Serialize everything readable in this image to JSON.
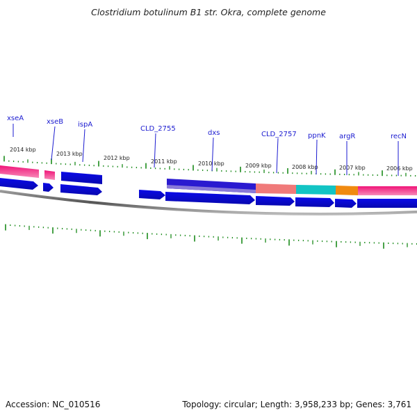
{
  "title": "Clostridium botulinum B1 str. Okra, complete genome",
  "footer": {
    "accession": "Accession: NC_010516",
    "summary": "Topology: circular; Length: 3,958,233 bp; Genes: 3,761"
  },
  "scale_labels": [
    "2014 kbp",
    "2013 kbp",
    "2012 kbp",
    "2011 kbp",
    "2010 kbp",
    "2009 kbp",
    "2008 kbp",
    "2007 kbp",
    "2006 kbp"
  ],
  "gene_labels": [
    "xseA",
    "xseB",
    "ispA",
    "CLD_2755",
    "dxs",
    "CLD_2757",
    "ppnK",
    "argR",
    "recN"
  ],
  "colors": {
    "cds": "#0a0ae0",
    "rrna_pink": "#f0147a",
    "salmon": "#f07878",
    "teal": "#10c8c8",
    "orange": "#f08a10",
    "purple_band": "#7a6ad0",
    "tick": "#1a8a1a",
    "backbone": "#7a7a7a",
    "label_line": "#1a1ad0"
  }
}
